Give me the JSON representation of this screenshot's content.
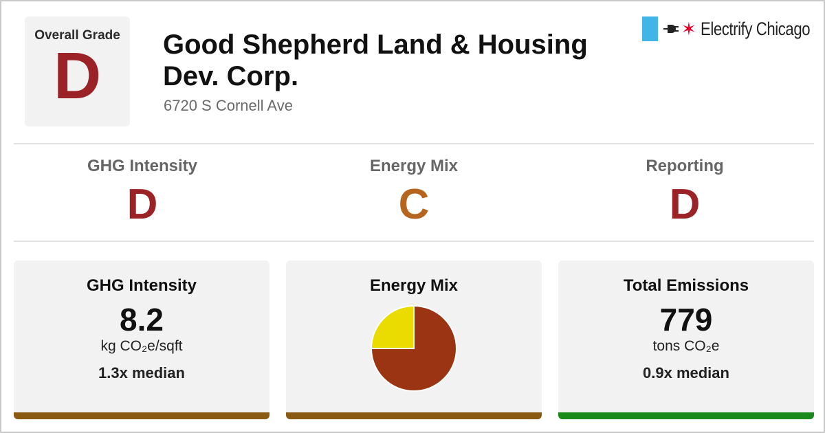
{
  "overall": {
    "label": "Overall Grade",
    "grade": "D",
    "grade_color": "#9b2226"
  },
  "building": {
    "name": "Good Shepherd Land & Housing Dev. Corp.",
    "address": "6720 S Cornell Ave"
  },
  "logo": {
    "text": "Electrify Chicago",
    "icons": [
      "chicago-flag-bar-icon",
      "plug-icon",
      "chicago-star-icon"
    ],
    "bar_color": "#41b6e6",
    "star_color": "#e4002b"
  },
  "sub_grades": [
    {
      "label": "GHG Intensity",
      "grade": "D",
      "color": "#9b2226"
    },
    {
      "label": "Energy Mix",
      "grade": "C",
      "color": "#b5651d"
    },
    {
      "label": "Reporting",
      "grade": "D",
      "color": "#9b2226"
    }
  ],
  "cards": {
    "ghg": {
      "title": "GHG Intensity",
      "value": "8.2",
      "unit": "kg CO₂e/sqft",
      "median": "1.3x median",
      "accent_color": "#8b5a12"
    },
    "mix": {
      "title": "Energy Mix",
      "accent_color": "#8b5a12"
    },
    "emissions": {
      "title": "Total Emissions",
      "value": "779",
      "unit": "tons CO₂e",
      "median": "0.9x median",
      "accent_color": "#1a8a1a"
    }
  },
  "chart_data": {
    "type": "pie",
    "title": "Energy Mix",
    "slices": [
      {
        "value": 75,
        "color": "#9a3412"
      },
      {
        "value": 25,
        "color": "#eadc00"
      }
    ]
  }
}
